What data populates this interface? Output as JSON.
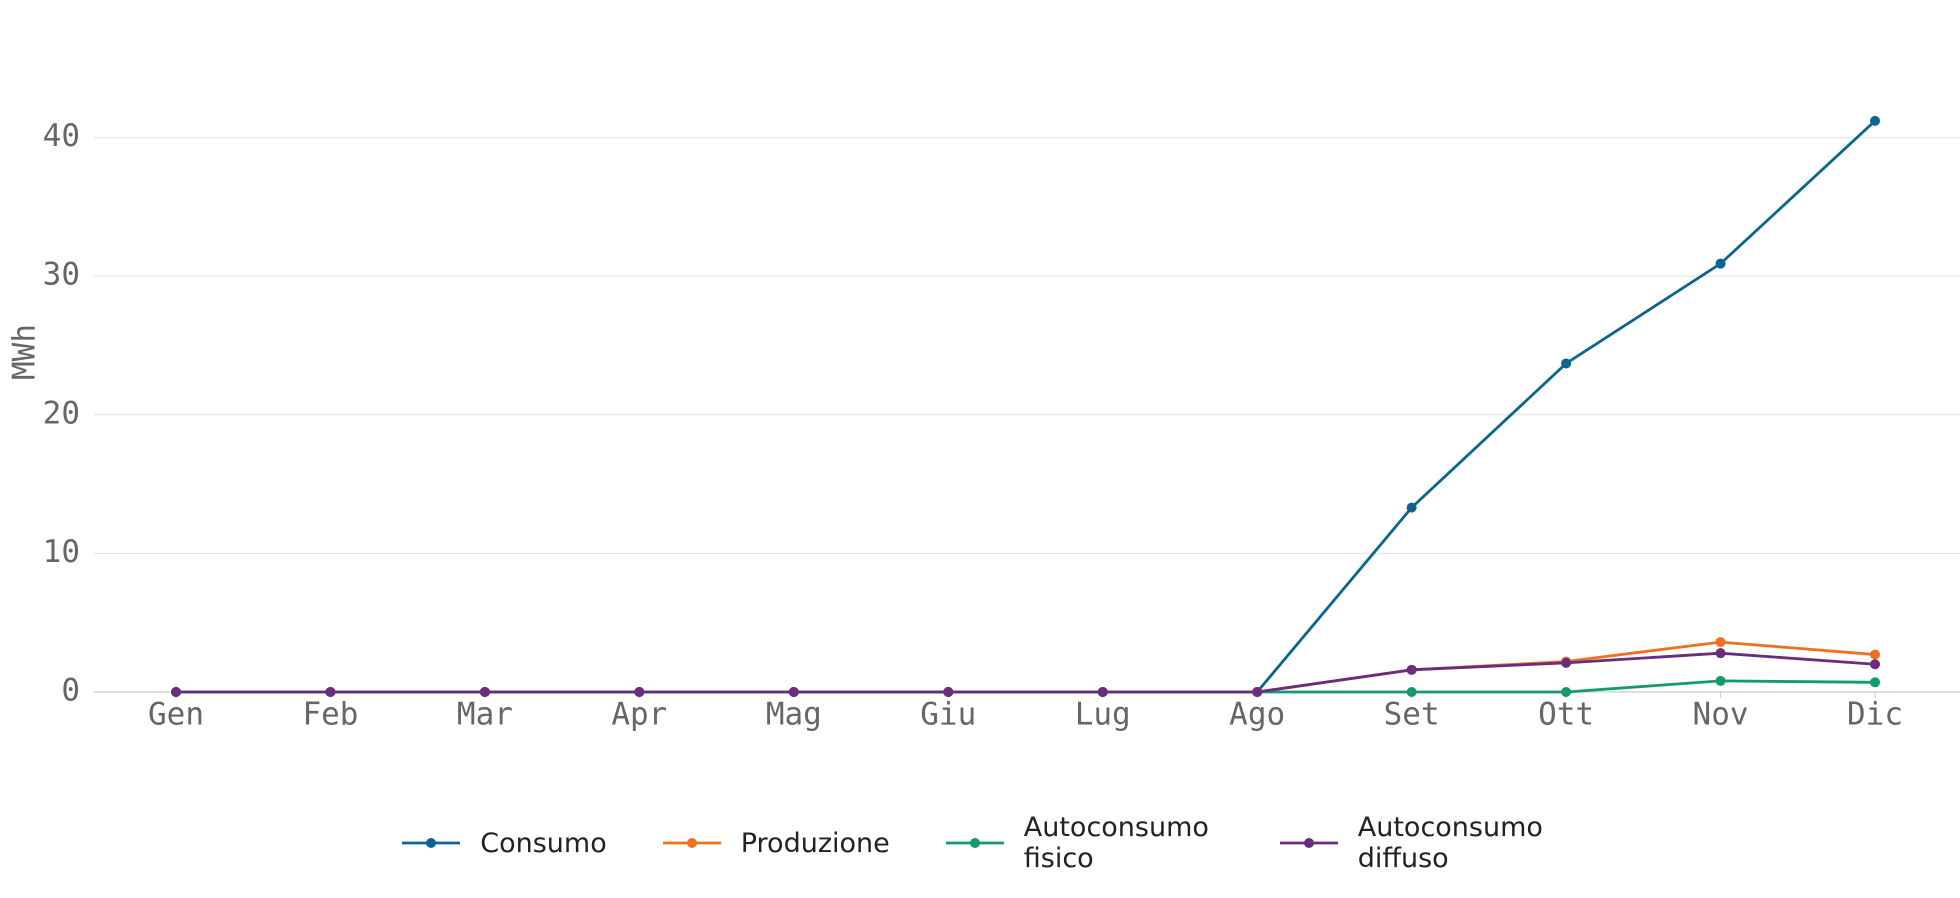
{
  "chart_data": {
    "type": "line",
    "y_label": "MWh",
    "categories": [
      "Gen",
      "Feb",
      "Mar",
      "Apr",
      "Mag",
      "Giu",
      "Lug",
      "Ago",
      "Set",
      "Ott",
      "Nov",
      "Dic"
    ],
    "series": [
      {
        "name": "Consumo",
        "color": "#0b6590",
        "values": [
          0,
          0,
          0,
          0,
          0,
          0,
          0,
          0,
          13.3,
          23.7,
          30.9,
          41.2
        ]
      },
      {
        "name": "Produzione",
        "color": "#f07020",
        "values": [
          0,
          0,
          0,
          0,
          0,
          0,
          0,
          0,
          1.6,
          2.2,
          3.6,
          2.7
        ]
      },
      {
        "name": "Autoconsumo fisico",
        "color": "#139a72",
        "values": [
          0,
          0,
          0,
          0,
          0,
          0,
          0,
          0,
          0,
          0,
          0.8,
          0.7
        ]
      },
      {
        "name": "Autoconsumo diffuso",
        "color": "#6a2c7c",
        "values": [
          0,
          0,
          0,
          0,
          0,
          0,
          0,
          0,
          1.6,
          2.1,
          2.8,
          2.0
        ]
      }
    ],
    "ylim": [
      0,
      43.5
    ],
    "yticks": [
      0,
      10,
      20,
      30,
      40
    ],
    "grid": true
  }
}
